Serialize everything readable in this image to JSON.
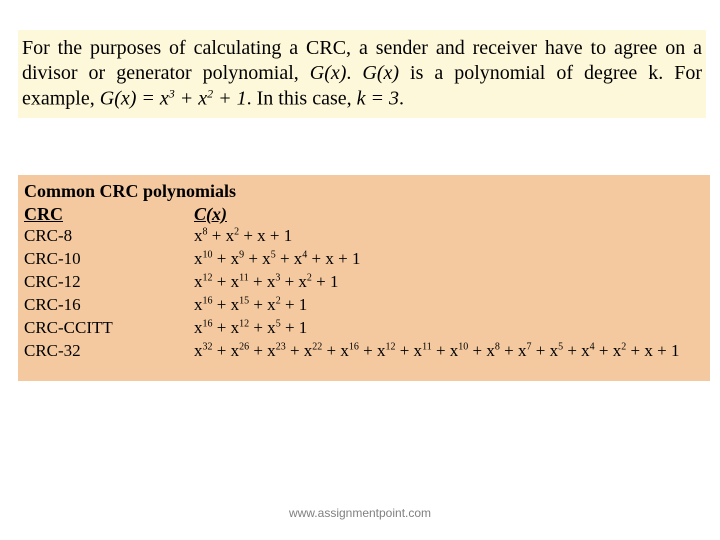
{
  "intro": {
    "text_parts": {
      "p1": "For the purposes of calculating a CRC, a sender and receiver have to agree on a divisor or generator polynomial, ",
      "gx1": "G(x)",
      "p2": ". ",
      "gx2": "G(x)",
      "p3": " is a polynomial of degree k. For example, ",
      "gx3": "G(x) = x",
      "e3": "3",
      "p4": " + x",
      "e2": "2",
      "p5": " + 1",
      "p6": ". In this case, ",
      "k": "k = 3",
      "p7": "."
    },
    "bg_color": "#fdf8da",
    "font_size": 20,
    "text_color": "#000000"
  },
  "table": {
    "title": "Common CRC polynomials",
    "header_left": "CRC",
    "header_right": "C(x)",
    "bg_color": "#f4c9a0",
    "font_size": 17,
    "rows": [
      {
        "name": "CRC-8",
        "exp": [
          8,
          2,
          1,
          0
        ]
      },
      {
        "name": "CRC-10",
        "exp": [
          10,
          9,
          5,
          4,
          1,
          0
        ]
      },
      {
        "name": "CRC-12",
        "exp": [
          12,
          11,
          3,
          2,
          0
        ]
      },
      {
        "name": "CRC-16",
        "exp": [
          16,
          15,
          2,
          0
        ]
      },
      {
        "name": "CRC-CCITT",
        "exp": [
          16,
          12,
          5,
          0
        ]
      },
      {
        "name": "CRC-32",
        "exp": [
          32,
          26,
          23,
          22,
          16,
          12,
          11,
          10,
          8,
          7,
          5,
          4,
          2,
          1,
          0
        ]
      }
    ]
  },
  "footer": "www.assignmentpoint.com",
  "colors": {
    "page_bg": "#ffffff",
    "footer_text": "#808080"
  }
}
